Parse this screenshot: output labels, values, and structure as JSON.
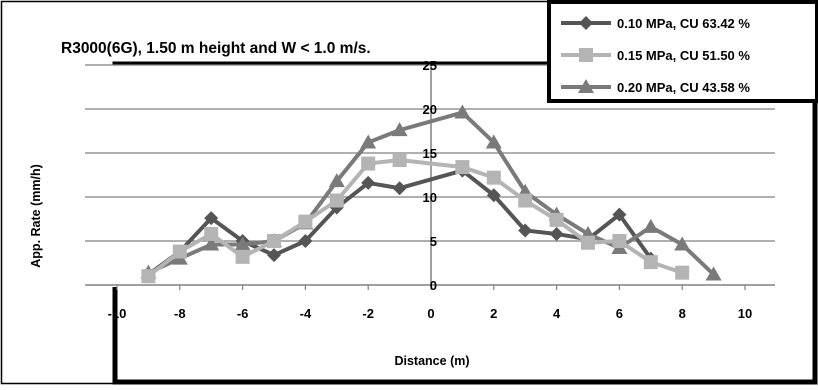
{
  "chart_data": {
    "type": "line",
    "title": "R3000(6G), 1.50 m height  and W < 1.0 m/s.",
    "xlabel": "Distance (m)",
    "ylabel": "App. Rate (mm/h)",
    "xlim": [
      -10,
      10
    ],
    "ylim": [
      0,
      25
    ],
    "xticks": [
      "-10",
      "-8",
      "-6",
      "-4",
      "-2",
      "0",
      "2",
      "4",
      "6",
      "8",
      "10"
    ],
    "yticks": [
      "0",
      "5",
      "10",
      "15",
      "20",
      "25"
    ],
    "grid": "horizontal",
    "legend_position": "top-right",
    "series": [
      {
        "name": "0.10 MPa,  CU 63.42 %",
        "color": "#555555",
        "marker": "diamond",
        "x": [
          -9,
          -8,
          -7,
          -6,
          -5,
          -4,
          -3,
          -2,
          -1,
          1,
          2,
          3,
          4,
          5,
          6,
          7
        ],
        "y": [
          1.2,
          3.8,
          7.6,
          5.0,
          3.4,
          5.0,
          8.8,
          11.6,
          11.0,
          13.0,
          10.2,
          6.2,
          5.8,
          5.2,
          8.0,
          3.0
        ]
      },
      {
        "name": "0.15 MPa, CU 51.50 %",
        "color": "#b4b4b4",
        "marker": "square",
        "x": [
          -9,
          -8,
          -7,
          -6,
          -5,
          -4,
          -3,
          -2,
          -1,
          1,
          2,
          3,
          4,
          5,
          6,
          7,
          8
        ],
        "y": [
          1.0,
          3.8,
          5.8,
          3.2,
          5.0,
          7.2,
          9.6,
          13.8,
          14.2,
          13.4,
          12.2,
          9.6,
          7.4,
          4.8,
          5.0,
          2.6,
          1.4
        ]
      },
      {
        "name": "0.20 MPa, CU 43.58 %",
        "color": "#7a7a7a",
        "marker": "triangle",
        "x": [
          -9,
          -8,
          -7,
          -6,
          -5,
          -4,
          -3,
          -2,
          -1,
          1,
          2,
          3,
          4,
          5,
          6,
          7,
          8,
          9
        ],
        "y": [
          1.4,
          3.0,
          4.6,
          4.6,
          5.0,
          7.0,
          11.8,
          16.2,
          17.6,
          19.6,
          16.2,
          10.6,
          8.0,
          5.8,
          4.2,
          6.6,
          4.6,
          1.2
        ]
      }
    ]
  }
}
